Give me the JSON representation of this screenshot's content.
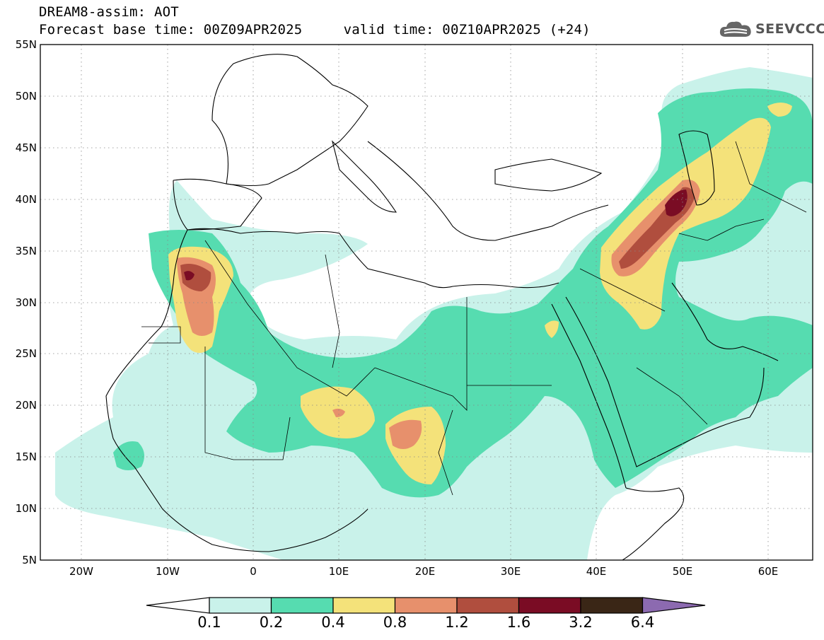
{
  "header": {
    "title_line1": "DREAM8-assim: AOT",
    "title_line2": "Forecast base time: 00Z09APR2025     valid time: 00Z10APR2025 (+24)",
    "logo_text": "SEEVCCC",
    "logo_icon": "cloud-icon"
  },
  "map": {
    "lat_labels": [
      "55N",
      "50N",
      "45N",
      "40N",
      "35N",
      "30N",
      "25N",
      "20N",
      "15N",
      "10N",
      "5N"
    ],
    "lon_labels": [
      "20W",
      "10W",
      "0",
      "10E",
      "20E",
      "30E",
      "40E",
      "50E",
      "60E"
    ],
    "lat_range": [
      5,
      55
    ],
    "lon_range": [
      -25,
      65
    ],
    "grid": "dotted"
  },
  "colorbar": {
    "levels": [
      "0.1",
      "0.2",
      "0.4",
      "0.8",
      "1.2",
      "1.6",
      "3.2",
      "6.4"
    ],
    "colors": [
      "#ffffff",
      "#c9f2ea",
      "#56dcb0",
      "#f4e27a",
      "#e7906c",
      "#b04e3e",
      "#7a0c24",
      "#3a2616",
      "#8c6ab0"
    ]
  }
}
